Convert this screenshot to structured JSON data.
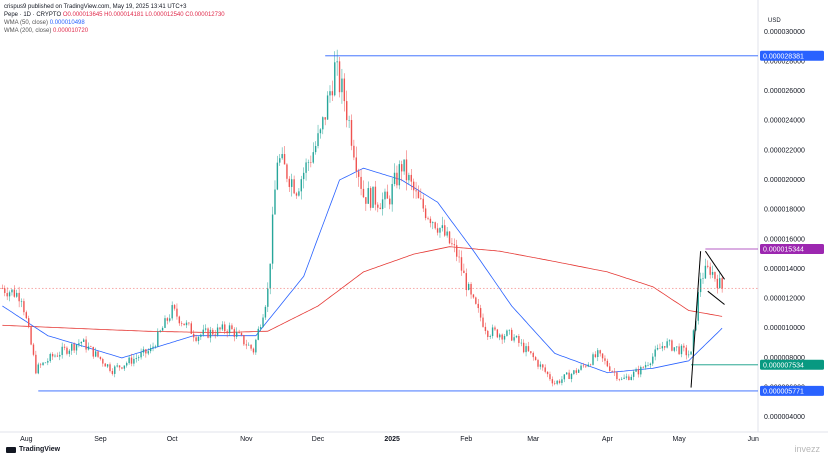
{
  "header": {
    "publisher_line": "crispus9 published on TradingView.com, May 19, 2025 13:41 UTC+3",
    "symbol": "Pepe · 1D · CRYPTO",
    "ohlc": "O0.000013645 H0.000014181 L0.000012540 C0.000012730",
    "wma50_label": "WMA (50, close)",
    "wma50_value": "0.000010498",
    "wma200_label": "WMA (200, close)",
    "wma200_value": "0.000010720"
  },
  "currency": "USD",
  "footer": {
    "brand": "TradingView",
    "watermark": "invezz"
  },
  "colors": {
    "up": "#26a69a",
    "down": "#ef5350",
    "wma50": "#2962ff",
    "wma200": "#e53935",
    "level_line": "#2962ff",
    "tag_blue": "#2962ff",
    "tag_purple": "#9c27b0",
    "tag_teal": "#089981"
  },
  "chart_data": {
    "type": "candlestick",
    "x_ticks": [
      "Aug",
      "Sep",
      "Oct",
      "Nov",
      "Dec",
      "2025",
      "Feb",
      "Mar",
      "Apr",
      "May",
      "Jun"
    ],
    "y_ticks": [
      "0.000004000",
      "0.000006000",
      "0.000008000",
      "0.000010000",
      "0.000012000",
      "0.000014000",
      "0.000016000",
      "0.000018000",
      "0.000020000",
      "0.000022000",
      "0.000024000",
      "0.000026000",
      "0.000028000",
      "0.000030000"
    ],
    "ylim": [
      3e-06,
      3.12e-05
    ],
    "price_tags": [
      {
        "label": "0.000028381",
        "value": 2.8381e-05,
        "color": "blue"
      },
      {
        "label": "0.000015344",
        "value": 1.5344e-05,
        "color": "purple"
      },
      {
        "label": "0.000007534",
        "value": 7.534e-06,
        "color": "teal"
      },
      {
        "label": "0.000005771",
        "value": 5.771e-06,
        "color": "blue"
      }
    ],
    "price_anchors": [
      [
        "2024-07-22",
        1.27e-05
      ],
      [
        "2024-07-30",
        1.22e-05
      ],
      [
        "2024-08-05",
        7.2e-06
      ],
      [
        "2024-08-12",
        8.1e-06
      ],
      [
        "2024-08-24",
        9.1e-06
      ],
      [
        "2024-09-06",
        7.2e-06
      ],
      [
        "2024-09-22",
        8.5e-06
      ],
      [
        "2024-10-01",
        1.12e-05
      ],
      [
        "2024-10-11",
        9.5e-06
      ],
      [
        "2024-10-25",
        1e-05
      ],
      [
        "2024-11-04",
        8.5e-06
      ],
      [
        "2024-11-10",
        1.25e-05
      ],
      [
        "2024-11-14",
        2.15e-05
      ],
      [
        "2024-11-22",
        1.95e-05
      ],
      [
        "2024-12-02",
        2.3e-05
      ],
      [
        "2024-12-08",
        2.75e-05
      ],
      [
        "2024-12-12",
        2.55e-05
      ],
      [
        "2024-12-20",
        1.9e-05
      ],
      [
        "2024-12-30",
        1.85e-05
      ],
      [
        "2025-01-05",
        2.1e-05
      ],
      [
        "2025-01-12",
        1.85e-05
      ],
      [
        "2025-01-20",
        1.7e-05
      ],
      [
        "2025-01-28",
        1.5e-05
      ],
      [
        "2025-02-03",
        1.2e-05
      ],
      [
        "2025-02-10",
        9.8e-06
      ],
      [
        "2025-02-20",
        9.5e-06
      ],
      [
        "2025-03-01",
        8e-06
      ],
      [
        "2025-03-10",
        6.3e-06
      ],
      [
        "2025-03-20",
        7.2e-06
      ],
      [
        "2025-03-28",
        8.2e-06
      ],
      [
        "2025-04-07",
        6.5e-06
      ],
      [
        "2025-04-15",
        7.2e-06
      ],
      [
        "2025-04-25",
        9e-06
      ],
      [
        "2025-05-06",
        8.2e-06
      ],
      [
        "2025-05-10",
        1.35e-05
      ],
      [
        "2025-05-14",
        1.4e-05
      ],
      [
        "2025-05-19",
        1.27e-05
      ]
    ],
    "wma50_anchors": [
      [
        "2024-07-22",
        1.15e-05
      ],
      [
        "2024-08-10",
        9.5e-06
      ],
      [
        "2024-09-10",
        8e-06
      ],
      [
        "2024-10-10",
        9.5e-06
      ],
      [
        "2024-11-05",
        9.5e-06
      ],
      [
        "2024-11-25",
        1.35e-05
      ],
      [
        "2024-12-10",
        2e-05
      ],
      [
        "2024-12-20",
        2.08e-05
      ],
      [
        "2025-01-05",
        2e-05
      ],
      [
        "2025-01-20",
        1.85e-05
      ],
      [
        "2025-02-05",
        1.5e-05
      ],
      [
        "2025-02-20",
        1.15e-05
      ],
      [
        "2025-03-10",
        8.3e-06
      ],
      [
        "2025-04-01",
        7e-06
      ],
      [
        "2025-04-20",
        7.3e-06
      ],
      [
        "2025-05-05",
        7.8e-06
      ],
      [
        "2025-05-19",
        1e-05
      ]
    ],
    "wma200_anchors": [
      [
        "2024-07-22",
        1.02e-05
      ],
      [
        "2024-08-20",
        1e-05
      ],
      [
        "2024-09-20",
        9.8e-06
      ],
      [
        "2024-10-20",
        9.7e-06
      ],
      [
        "2024-11-10",
        9.8e-06
      ],
      [
        "2024-12-01",
        1.15e-05
      ],
      [
        "2024-12-20",
        1.38e-05
      ],
      [
        "2025-01-10",
        1.5e-05
      ],
      [
        "2025-01-25",
        1.55e-05
      ],
      [
        "2025-02-15",
        1.52e-05
      ],
      [
        "2025-03-10",
        1.45e-05
      ],
      [
        "2025-04-01",
        1.38e-05
      ],
      [
        "2025-04-20",
        1.28e-05
      ],
      [
        "2025-05-05",
        1.12e-05
      ],
      [
        "2025-05-19",
        1.08e-05
      ]
    ],
    "flag_pattern": {
      "pole": [
        [
          "2025-05-06",
          6e-06
        ],
        [
          "2025-05-10",
          1.52e-05
        ]
      ],
      "upper": [
        [
          "2025-05-12",
          1.52e-05
        ],
        [
          "2025-05-20",
          1.33e-05
        ]
      ],
      "lower": [
        [
          "2025-05-13",
          1.25e-05
        ],
        [
          "2025-05-20",
          1.16e-05
        ]
      ]
    }
  }
}
